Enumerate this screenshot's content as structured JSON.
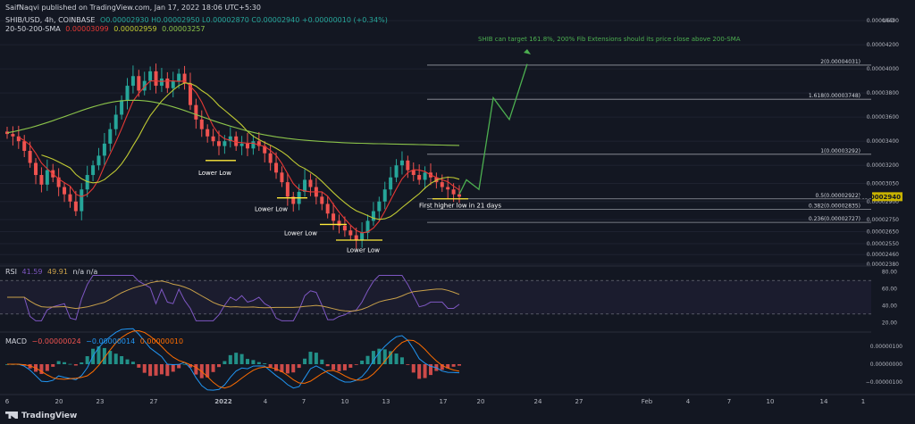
{
  "publisher": "SaifNaqvi published on TradingView.com, Jan 17, 2022 18:06 UTC+5:30",
  "legend": {
    "symbol": "SHIB/USD, 4h, COINBASE",
    "ohlc": "O0.00002930 H0.00002950 L0.00002870 C0.00002940 +0.00000010 (+0.34%)",
    "sma_label": "20-50-200-SMA",
    "sma20": "0.00003099",
    "sma50": "0.00002959",
    "sma200": "0.00003257",
    "rsi_label": "RSI",
    "rsi_value": "41.59",
    "rsi_ma": "49.91",
    "rsi_na": "n/a n/a",
    "macd_label": "MACD",
    "macd_hist": "−0.00000024",
    "macd_line": "−0.00000014",
    "macd_signal": "0.00000010"
  },
  "colors": {
    "bg": "#131722",
    "up": "#26a69a",
    "down": "#ef5350",
    "sma20": "#e53935",
    "sma50": "#c0ca33",
    "sma200": "#8bc34a",
    "projection": "#4caf50",
    "annotation": "#ffeb3b",
    "fib": "#9598a1",
    "rsi": "#7e57c2",
    "rsi_ma": "#c8a04a"
  },
  "tradingview": "TradingView",
  "axis_unit": "USD",
  "chart_data": {
    "type": "candlestick",
    "x_ticks": [
      "6",
      "20",
      "23",
      "27",
      "2022",
      "4",
      "7",
      "10",
      "13",
      "17",
      "20",
      "24",
      "27",
      "Feb",
      "4",
      "7",
      "10",
      "14",
      "1"
    ],
    "price_ticks": [
      "0.00004400",
      "0.00004200",
      "0.00004000",
      "0.00003800",
      "0.00003600",
      "0.00003400",
      "0.00003200",
      "0.00003050",
      "0.00002900",
      "0.00002750",
      "0.00002650",
      "0.00002550",
      "0.00002460",
      "0.00002380"
    ],
    "price_range": [
      2.38e-05,
      4.46e-05
    ],
    "last_price": "0.00002940",
    "candles_close": [
      3.46,
      3.44,
      3.4,
      3.32,
      3.22,
      3.12,
      3.04,
      3.16,
      3.1,
      3.02,
      2.96,
      2.9,
      2.82,
      3.0,
      3.12,
      3.2,
      3.28,
      3.38,
      3.5,
      3.62,
      3.74,
      3.86,
      3.94,
      3.82,
      3.9,
      3.98,
      3.86,
      3.92,
      3.84,
      3.9,
      3.96,
      3.88,
      3.7,
      3.58,
      3.5,
      3.44,
      3.4,
      3.36,
      3.4,
      3.44,
      3.36,
      3.38,
      3.34,
      3.4,
      3.36,
      3.3,
      3.22,
      3.14,
      3.06,
      2.94,
      2.88,
      2.98,
      3.08,
      3.02,
      2.94,
      2.88,
      2.8,
      2.74,
      2.7,
      2.66,
      2.62,
      2.58,
      2.64,
      2.74,
      2.82,
      2.9,
      3.0,
      3.1,
      3.2,
      3.24,
      3.16,
      3.12,
      3.08,
      3.14,
      3.1,
      3.06,
      3.02,
      3.0,
      2.96,
      2.94
    ],
    "fib_levels": [
      {
        "label": "2(0.00004031)",
        "value": 4.031
      },
      {
        "label": "1.618(0.00003748)",
        "value": 3.748
      },
      {
        "label": "1(0.00003292)",
        "value": 3.292
      },
      {
        "label": "0.5(0.00002922)",
        "value": 2.922
      },
      {
        "label": "0.382(0.00002835)",
        "value": 2.835
      },
      {
        "label": "0.236(0.00002727)",
        "value": 2.727
      }
    ],
    "annotations": [
      "Lower Low",
      "Lower Low",
      "Lower Low",
      "Lower Low",
      "First higher low in 21 days",
      "SHIB can target 161.8%, 200% Fib Extensions should its price close above 200-SMA"
    ],
    "rsi_ticks": [
      "80.00",
      "60.00",
      "40.00",
      "20.00"
    ],
    "rsi_levels": [
      70,
      30
    ],
    "rsi_last": 41.59,
    "macd_ticks": [
      "0.00000100",
      "0.00000000",
      "−0.00000100"
    ]
  }
}
